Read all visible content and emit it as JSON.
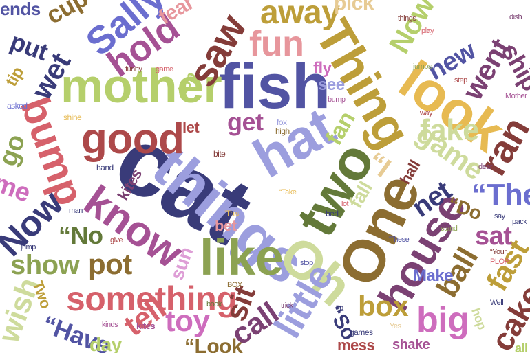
{
  "words": [
    {
      "text": "cat",
      "color": "#393b79"
    },
    {
      "text": "things",
      "color": "#9c9ede"
    },
    {
      "text": "fish",
      "color": "#5254a3"
    },
    {
      "text": "mother",
      "color": "#b5cf6b"
    },
    {
      "text": "hat",
      "color": "#9c9ede"
    },
    {
      "text": "Thing",
      "color": "#bd9e39"
    },
    {
      "text": "look",
      "color": "#e7ba52"
    },
    {
      "text": "two",
      "color": "#637939"
    },
    {
      "text": "One",
      "color": "#8c6d31"
    },
    {
      "text": "like",
      "color": "#8ca252"
    },
    {
      "text": "house",
      "color": "#7b4173"
    },
    {
      "text": "Oh",
      "color": "#cedb9c"
    },
    {
      "text": "good",
      "color": "#ad494a"
    },
    {
      "text": "know",
      "color": "#a55194"
    },
    {
      "text": "bump",
      "color": "#d6616b"
    },
    {
      "text": "something",
      "color": "#d6616b"
    },
    {
      "text": "hold",
      "color": "#a55194"
    },
    {
      "text": "saw",
      "color": "#843c39"
    },
    {
      "text": "fun",
      "color": "#e7969c"
    },
    {
      "text": "Sally",
      "color": "#6b6ecf"
    },
    {
      "text": "away",
      "color": "#bd9e39"
    },
    {
      "text": "little",
      "color": "#9c9ede"
    },
    {
      "text": "show",
      "color": "#8ca252"
    },
    {
      "text": "pot",
      "color": "#8c6d31"
    },
    {
      "text": "Now",
      "color": "#393b79"
    },
    {
      "text": "ran",
      "color": "#843c39"
    },
    {
      "text": "game",
      "color": "#cedb9c"
    },
    {
      "text": "fake",
      "color": "#cedb9c"
    },
    {
      "text": "went",
      "color": "#7b4173"
    },
    {
      "text": "big",
      "color": "#ce6dbd"
    },
    {
      "text": "box",
      "color": "#bd9e39"
    },
    {
      "text": "ball",
      "color": "#8c6d31"
    },
    {
      "text": "call",
      "color": "#7b4173"
    },
    {
      "text": "sit",
      "color": "#843c39"
    },
    {
      "text": "toy",
      "color": "#ce6dbd"
    },
    {
      "text": "tell",
      "color": "#d6616b"
    },
    {
      "text": "cake",
      "color": "#843c39"
    },
    {
      "text": "fast",
      "color": "#bd9e39"
    },
    {
      "text": "net",
      "color": "#393b79"
    },
    {
      "text": "“The",
      "color": "#6b6ecf"
    },
    {
      "text": "sat",
      "color": "#a55194"
    },
    {
      "text": "new",
      "color": "#5254a3"
    },
    {
      "text": "get",
      "color": "#a55194"
    },
    {
      "text": "fan",
      "color": "#b5cf6b"
    },
    {
      "text": "wet",
      "color": "#393b79"
    },
    {
      "text": "Now",
      "color": "#b5cf6b"
    },
    {
      "text": "“No",
      "color": "#637939"
    },
    {
      "text": "“Have",
      "color": "#5254a3"
    },
    {
      "text": "“Look",
      "color": "#8c6d31"
    },
    {
      "text": "“So",
      "color": "#393b79"
    },
    {
      "text": "wish",
      "color": "#cedb9c"
    },
    {
      "text": "cup",
      "color": "#8c6d31"
    },
    {
      "text": "fear",
      "color": "#e7969c"
    },
    {
      "text": "pick",
      "color": "#e7cb94"
    },
    {
      "text": "Make",
      "color": "#6b6ecf"
    },
    {
      "text": "mess",
      "color": "#ad494a"
    },
    {
      "text": "shake",
      "color": "#a55194"
    },
    {
      "text": "day",
      "color": "#b5cf6b"
    },
    {
      "text": "Two",
      "color": "#bd9e39"
    },
    {
      "text": "sun",
      "color": "#de9ed6"
    },
    {
      "text": "fall",
      "color": "#cedb9c"
    },
    {
      "text": "hall",
      "color": "#843c39"
    },
    {
      "text": "let",
      "color": "#ad494a"
    },
    {
      "text": "see",
      "color": "#9c9ede"
    },
    {
      "text": "fly",
      "color": "#ce6dbd"
    },
    {
      "text": "kites",
      "color": "#7b4173"
    },
    {
      "text": "bet",
      "color": "#e7969c"
    },
    {
      "text": "put",
      "color": "#393b79"
    },
    {
      "text": "me",
      "color": "#ce6dbd"
    },
    {
      "text": "go",
      "color": "#8ca252"
    },
    {
      "text": "ship",
      "color": "#7b4173"
    },
    {
      "text": "top",
      "color": "#b5cf6b"
    },
    {
      "text": "“Do",
      "color": "#8c6d31"
    },
    {
      "text": "“I",
      "color": "#e7cb94"
    },
    {
      "text": "ends",
      "color": "#5254a3"
    },
    {
      "text": "tip",
      "color": "#bd9e39"
    },
    {
      "text": "hop",
      "color": "#cedb9c"
    },
    {
      "text": "all",
      "color": "#b5cf6b"
    },
    {
      "text": "kites",
      "color": "#a55194"
    },
    {
      "text": "games",
      "color": "#393b79"
    },
    {
      "text": "hand",
      "color": "#393b79"
    },
    {
      "text": "bite",
      "color": "#843c39"
    },
    {
      "text": "fox",
      "color": "#9c9ede"
    },
    {
      "text": "high",
      "color": "#8c6d31"
    },
    {
      "text": "bed",
      "color": "#393b79"
    },
    {
      "text": "shine",
      "color": "#e7ba52"
    },
    {
      "text": "asked",
      "color": "#6b6ecf"
    },
    {
      "text": "funny",
      "color": "#843c39"
    },
    {
      "text": "game",
      "color": "#d6616b"
    },
    {
      "text": "things",
      "color": "#843c39"
    },
    {
      "text": "jumps",
      "color": "#8ca252"
    },
    {
      "text": "dear",
      "color": "#7b4173"
    },
    {
      "text": "way",
      "color": "#ad494a"
    },
    {
      "text": "say",
      "color": "#393b79"
    },
    {
      "text": "PLOP",
      "color": "#d6616b"
    },
    {
      "text": "“Your",
      "color": "#843c39"
    },
    {
      "text": "Well",
      "color": "#393b79"
    },
    {
      "text": "Yes",
      "color": "#e7cb94"
    },
    {
      "text": "BOX",
      "color": "#8c6d31"
    },
    {
      "text": "lot",
      "color": "#d6616b"
    },
    {
      "text": "“This",
      "color": "#e7ba52"
    },
    {
      "text": "“These",
      "color": "#5254a3"
    },
    {
      "text": "“Take",
      "color": "#e7ba52"
    },
    {
      "text": "jump",
      "color": "#393b79"
    },
    {
      "text": "give",
      "color": "#ad494a"
    },
    {
      "text": "book",
      "color": "#637939"
    },
    {
      "text": "trick",
      "color": "#7b4173"
    },
    {
      "text": "bump",
      "color": "#a55194"
    },
    {
      "text": "stand",
      "color": "#8ca252"
    },
    {
      "text": "pack",
      "color": "#393b79"
    },
    {
      "text": "kinds",
      "color": "#a55194"
    },
    {
      "text": "“in",
      "color": "#393b79"
    },
    {
      "text": "stop",
      "color": "#5254a3"
    },
    {
      "text": "Mother",
      "color": "#a55194"
    },
    {
      "text": "play",
      "color": "#d6616b"
    },
    {
      "text": "dish",
      "color": "#7b4173"
    },
    {
      "text": "man",
      "color": "#393b79"
    },
    {
      "text": "step",
      "color": "#ad494a"
    }
  ]
}
